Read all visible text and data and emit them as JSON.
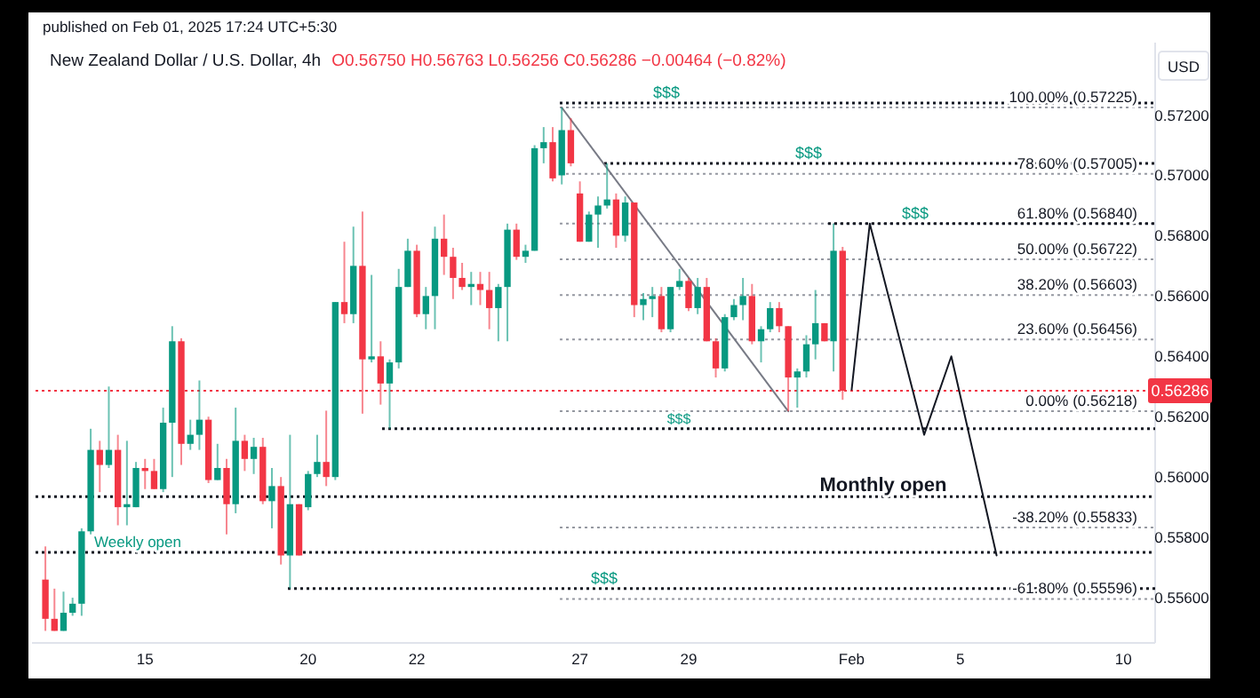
{
  "chart_data": {
    "type": "candlestick",
    "title": "New Zealand Dollar / U.S. Dollar, 4h",
    "subtitle": "O0.56750 H0.56763 L0.56256 C0.56286 −0.00464 (−0.82%)",
    "ylabel": "USD",
    "annotations": [
      "published on Feb 01, 2025 17:24 UTC+5:30"
    ],
    "categories": [
      null,
      null,
      null,
      null,
      null,
      null,
      null,
      null,
      null,
      null,
      null,
      "15",
      null,
      null,
      null,
      null,
      null,
      null,
      null,
      null,
      null,
      null,
      null,
      null,
      null,
      null,
      null,
      null,
      null,
      "20",
      null,
      null,
      null,
      null,
      null,
      null,
      null,
      null,
      null,
      null,
      null,
      "22",
      null,
      null,
      null,
      null,
      null,
      null,
      null,
      null,
      null,
      null,
      null,
      null,
      null,
      null,
      null,
      null,
      null,
      "27",
      null,
      null,
      null,
      null,
      null,
      null,
      null,
      null,
      null,
      null,
      null,
      "29",
      null,
      null,
      null,
      null,
      null,
      null,
      null,
      null,
      null,
      null,
      null,
      null,
      null,
      null,
      null,
      null,
      null,
      "Feb",
      null,
      null,
      null,
      null,
      null,
      null,
      null,
      null,
      null,
      null,
      null,
      "5",
      null,
      null,
      null,
      null,
      null,
      null,
      null,
      null,
      null,
      null,
      null,
      null,
      null,
      null,
      null,
      null,
      null,
      "10",
      null,
      null,
      null
    ],
    "ohlc": [
      [
        0.5566,
        0.5577,
        0.5549,
        0.5553
      ],
      [
        0.5553,
        0.5563,
        0.5549,
        0.5549
      ],
      [
        0.5549,
        0.5562,
        0.5549,
        0.5555
      ],
      [
        0.5555,
        0.556,
        0.5554,
        0.5558
      ],
      [
        0.5558,
        0.5583,
        0.5554,
        0.5582
      ],
      [
        0.5582,
        0.5616,
        0.5581,
        0.5609
      ],
      [
        0.5609,
        0.5612,
        0.5595,
        0.5604
      ],
      [
        0.5604,
        0.563,
        0.5603,
        0.5609
      ],
      [
        0.5609,
        0.5614,
        0.5584,
        0.559
      ],
      [
        0.559,
        0.5612,
        0.5584,
        0.5591
      ],
      [
        0.559,
        0.5605,
        0.559,
        0.5603
      ],
      [
        0.5603,
        0.5606,
        0.5596,
        0.5602
      ],
      [
        0.5602,
        0.5606,
        0.5596,
        0.5596
      ],
      [
        0.5596,
        0.5623,
        0.5595,
        0.5618
      ],
      [
        0.5618,
        0.565,
        0.56,
        0.5645
      ],
      [
        0.5645,
        0.5646,
        0.5604,
        0.5611
      ],
      [
        0.5611,
        0.5619,
        0.5609,
        0.5614
      ],
      [
        0.5614,
        0.5632,
        0.5609,
        0.5619
      ],
      [
        0.5619,
        0.562,
        0.5598,
        0.5599
      ],
      [
        0.5599,
        0.5611,
        0.5599,
        0.5603
      ],
      [
        0.5603,
        0.5606,
        0.5581,
        0.5591
      ],
      [
        0.5591,
        0.5623,
        0.5588,
        0.5612
      ],
      [
        0.5612,
        0.5614,
        0.5602,
        0.5606
      ],
      [
        0.5606,
        0.5613,
        0.5601,
        0.561
      ],
      [
        0.561,
        0.5613,
        0.5591,
        0.5592
      ],
      [
        0.5592,
        0.5603,
        0.5583,
        0.5597
      ],
      [
        0.5597,
        0.56,
        0.5571,
        0.5574
      ],
      [
        0.5574,
        0.5614,
        0.5563,
        0.5591
      ],
      [
        0.5591,
        0.5591,
        0.5574,
        0.5574
      ],
      [
        0.559,
        0.5602,
        0.5589,
        0.5601
      ],
      [
        0.5601,
        0.5614,
        0.56,
        0.5605
      ],
      [
        0.5605,
        0.5622,
        0.5597,
        0.56
      ],
      [
        0.56,
        0.5658,
        0.5599,
        0.5658
      ],
      [
        0.5658,
        0.5678,
        0.5651,
        0.5654
      ],
      [
        0.5654,
        0.5683,
        0.5651,
        0.567
      ],
      [
        0.567,
        0.5688,
        0.5621,
        0.5639
      ],
      [
        0.5639,
        0.5667,
        0.5638,
        0.564
      ],
      [
        0.564,
        0.5645,
        0.5624,
        0.5631
      ],
      [
        0.5631,
        0.5639,
        0.5616,
        0.5638
      ],
      [
        0.5638,
        0.5669,
        0.5636,
        0.5663
      ],
      [
        0.5663,
        0.5679,
        0.5663,
        0.5675
      ],
      [
        0.5675,
        0.5677,
        0.5653,
        0.5654
      ],
      [
        0.5654,
        0.5663,
        0.5649,
        0.566
      ],
      [
        0.566,
        0.5683,
        0.5649,
        0.5679
      ],
      [
        0.5679,
        0.5687,
        0.5667,
        0.5673
      ],
      [
        0.5673,
        0.5676,
        0.5659,
        0.5666
      ],
      [
        0.5666,
        0.5671,
        0.5662,
        0.5663
      ],
      [
        0.5663,
        0.5668,
        0.5657,
        0.5664
      ],
      [
        0.5664,
        0.5668,
        0.5657,
        0.5662
      ],
      [
        0.5662,
        0.5668,
        0.5649,
        0.5656
      ],
      [
        0.5656,
        0.5664,
        0.5645,
        0.5663
      ],
      [
        0.5663,
        0.5684,
        0.5645,
        0.5682
      ],
      [
        0.5682,
        0.5684,
        0.5672,
        0.5673
      ],
      [
        0.5673,
        0.5677,
        0.5671,
        0.5675
      ],
      [
        0.5675,
        0.571,
        0.5675,
        0.5709
      ],
      [
        0.5709,
        0.5716,
        0.5704,
        0.5711
      ],
      [
        0.5711,
        0.5716,
        0.5698,
        0.5699
      ],
      [
        0.57,
        0.57225,
        0.5697,
        0.5715
      ],
      [
        0.5715,
        0.5719,
        0.5703,
        0.5704
      ],
      [
        0.5694,
        0.5698,
        0.5678,
        0.5678
      ],
      [
        0.5678,
        0.5688,
        0.5678,
        0.5687
      ],
      [
        0.5687,
        0.5693,
        0.5676,
        0.569
      ],
      [
        0.569,
        0.5704,
        0.5689,
        0.5692
      ],
      [
        0.5692,
        0.5694,
        0.5676,
        0.568
      ],
      [
        0.568,
        0.5693,
        0.5678,
        0.5691
      ],
      [
        0.5691,
        0.5691,
        0.5653,
        0.5657
      ],
      [
        0.5657,
        0.5661,
        0.5652,
        0.5659
      ],
      [
        0.5659,
        0.5663,
        0.5653,
        0.566
      ],
      [
        0.566,
        0.5663,
        0.5648,
        0.5649
      ],
      [
        0.5649,
        0.5663,
        0.5648,
        0.5663
      ],
      [
        0.5663,
        0.5669,
        0.5662,
        0.5665
      ],
      [
        0.5665,
        0.5666,
        0.5655,
        0.5656
      ],
      [
        0.5656,
        0.5666,
        0.5654,
        0.5663
      ],
      [
        0.5663,
        0.5666,
        0.5645,
        0.5645
      ],
      [
        0.5645,
        0.5646,
        0.5633,
        0.5636
      ],
      [
        0.5636,
        0.5654,
        0.5635,
        0.5653
      ],
      [
        0.5653,
        0.5659,
        0.5652,
        0.5657
      ],
      [
        0.5657,
        0.5666,
        0.5652,
        0.566
      ],
      [
        0.566,
        0.5664,
        0.5644,
        0.5645
      ],
      [
        0.5645,
        0.565,
        0.5638,
        0.5649
      ],
      [
        0.5649,
        0.5658,
        0.5648,
        0.5656
      ],
      [
        0.5656,
        0.5658,
        0.5648,
        0.565
      ],
      [
        0.565,
        0.565,
        0.56218,
        0.5633
      ],
      [
        0.5633,
        0.5636,
        0.5623,
        0.5635
      ],
      [
        0.5635,
        0.5647,
        0.5633,
        0.5644
      ],
      [
        0.5644,
        0.5662,
        0.5639,
        0.5651
      ],
      [
        0.5651,
        0.5651,
        0.5645,
        0.5645
      ],
      [
        0.5645,
        0.5684,
        0.5635,
        0.5675
      ],
      [
        0.5675,
        0.56763,
        0.56256,
        0.56286
      ],
      null,
      null,
      null,
      null,
      null,
      null,
      null,
      null,
      null,
      null,
      null,
      null,
      null,
      null,
      null,
      null,
      null,
      null,
      null,
      null,
      null,
      null,
      null,
      null,
      null,
      null,
      null,
      null,
      null,
      null,
      null,
      null,
      null,
      null
    ],
    "series": [
      {
        "type": "line",
        "color": "#787b86",
        "values": [
          null,
          null,
          null,
          null,
          null,
          null,
          null,
          null,
          null,
          null,
          null,
          null,
          null,
          null,
          null,
          null,
          null,
          null,
          null,
          null,
          null,
          null,
          null,
          null,
          null,
          null,
          null,
          null,
          null,
          null,
          null,
          null,
          null,
          null,
          null,
          null,
          null,
          null,
          null,
          null,
          null,
          null,
          null,
          null,
          null,
          null,
          null,
          null,
          null,
          null,
          null,
          null,
          null,
          null,
          null,
          null,
          null,
          0.57225,
          null,
          null,
          null,
          null,
          null,
          null,
          null,
          null,
          null,
          null,
          null,
          null,
          null,
          null,
          null,
          null,
          null,
          null,
          null,
          null,
          null,
          null,
          null,
          null,
          0.56218,
          null,
          null,
          null,
          null,
          null,
          null,
          null,
          null,
          null,
          null,
          null,
          null,
          null,
          null,
          null,
          null,
          null,
          null,
          null,
          null,
          null,
          null,
          null,
          null,
          null,
          null,
          null,
          null,
          null,
          null,
          null,
          null,
          null,
          null,
          null,
          null,
          null,
          null,
          null,
          null
        ]
      },
      {
        "type": "line",
        "color": "#131722",
        "values": [
          null,
          null,
          null,
          null,
          null,
          null,
          null,
          null,
          null,
          null,
          null,
          null,
          null,
          null,
          null,
          null,
          null,
          null,
          null,
          null,
          null,
          null,
          null,
          null,
          null,
          null,
          null,
          null,
          null,
          null,
          null,
          null,
          null,
          null,
          null,
          null,
          null,
          null,
          null,
          null,
          null,
          null,
          null,
          null,
          null,
          null,
          null,
          null,
          null,
          null,
          null,
          null,
          null,
          null,
          null,
          null,
          null,
          null,
          null,
          null,
          null,
          null,
          null,
          null,
          null,
          null,
          null,
          null,
          null,
          null,
          null,
          null,
          null,
          null,
          null,
          null,
          null,
          null,
          null,
          null,
          null,
          null,
          null,
          null,
          null,
          null,
          null,
          null,
          null,
          0.5629,
          null,
          0.5684,
          null,
          null,
          null,
          null,
          null,
          0.5614,
          null,
          null,
          0.564,
          null,
          null,
          null,
          null,
          0.5574,
          null,
          null,
          null,
          null,
          null,
          null,
          null,
          null,
          null,
          null,
          null,
          null,
          null,
          null,
          null,
          null,
          null
        ]
      }
    ],
    "ylim": [
      0.5545,
      0.5744
    ],
    "yticks": [
      {
        "value": 0.556,
        "label": "0.55600"
      },
      {
        "value": 0.558,
        "label": "0.55800"
      },
      {
        "value": 0.56,
        "label": "0.56000"
      },
      {
        "value": 0.562,
        "label": "0.56200"
      },
      {
        "value": 0.564,
        "label": "0.56400"
      },
      {
        "value": 0.566,
        "label": "0.56600"
      },
      {
        "value": 0.568,
        "label": "0.56800"
      },
      {
        "value": 0.57,
        "label": "0.57000"
      },
      {
        "value": 0.572,
        "label": "0.57200"
      }
    ],
    "ref_lines": [
      {
        "axis": "y",
        "value": 0.57225,
        "label": "100.00% (0.57225)",
        "color": "#9598a1",
        "line_style": "dotted"
      },
      {
        "axis": "y",
        "value": 0.57005,
        "label": "78.60% (0.57005)",
        "color": "#9598a1",
        "line_style": "dotted"
      },
      {
        "axis": "y",
        "value": 0.5684,
        "label": "61.80% (0.56840)",
        "color": "#9598a1",
        "line_style": "dotted"
      },
      {
        "axis": "y",
        "value": 0.56722,
        "label": "50.00% (0.56722)",
        "color": "#9598a1",
        "line_style": "dotted"
      },
      {
        "axis": "y",
        "value": 0.56603,
        "label": "38.20% (0.56603)",
        "color": "#9598a1",
        "line_style": "dotted"
      },
      {
        "axis": "y",
        "value": 0.56456,
        "label": "23.60% (0.56456)",
        "color": "#9598a1",
        "line_style": "dotted"
      },
      {
        "axis": "y",
        "value": 0.56218,
        "label": "0.00% (0.56218)",
        "color": "#9598a1",
        "line_style": "dotted"
      },
      {
        "axis": "y",
        "value": 0.55833,
        "label": "-38.20% (0.55833)",
        "color": "#9598a1",
        "line_style": "dotted"
      },
      {
        "axis": "y",
        "value": 0.55596,
        "label": "-61.80% (0.55596)",
        "color": "#9598a1",
        "line_style": "dotted"
      },
      {
        "axis": "y",
        "value": 0.5724,
        "label": "$$$",
        "color": "#131722",
        "line_style": "dotted"
      },
      {
        "axis": "y",
        "value": 0.5704,
        "label": "$$$",
        "color": "#131722",
        "line_style": "dotted"
      },
      {
        "axis": "y",
        "value": 0.5684,
        "label": "$$$",
        "color": "#131722",
        "line_style": "dotted"
      },
      {
        "axis": "y",
        "value": 0.5616,
        "label": "$$$",
        "color": "#131722",
        "line_style": "dotted"
      },
      {
        "axis": "y",
        "value": 0.5563,
        "label": "$$$",
        "color": "#131722",
        "line_style": "dotted"
      },
      {
        "axis": "y",
        "value": 0.55935,
        "label": "Monthly open",
        "color": "#131722",
        "line_style": "dotted"
      },
      {
        "axis": "y",
        "value": 0.5575,
        "label": "Weekly open",
        "color": "#131722",
        "line_style": "dotted"
      },
      {
        "axis": "y",
        "value": 0.56286,
        "label": "0.56286",
        "color": "#f23645",
        "line_style": "dotted"
      }
    ]
  }
}
